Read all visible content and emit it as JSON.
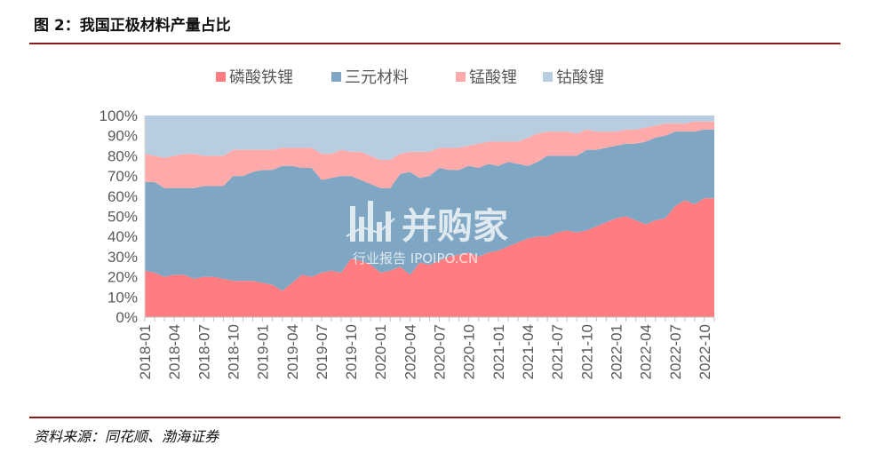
{
  "figure": {
    "title": "图 2：我国正极材料产量占比",
    "source": "资料来源：同花顺、渤海证券"
  },
  "watermark": {
    "brand": "并购家",
    "sub": "行业报告 IPOIPO.CN"
  },
  "chart_data": {
    "type": "area",
    "stacked": true,
    "title": "",
    "xlabel": "",
    "ylabel": "",
    "ylim": [
      0,
      100
    ],
    "y_ticks": [
      "0%",
      "10%",
      "20%",
      "30%",
      "40%",
      "50%",
      "60%",
      "70%",
      "80%",
      "90%",
      "100%"
    ],
    "legend_position": "top",
    "grid": false,
    "x": [
      "2018-01",
      "2018-02",
      "2018-03",
      "2018-04",
      "2018-05",
      "2018-06",
      "2018-07",
      "2018-08",
      "2018-09",
      "2018-10",
      "2018-11",
      "2018-12",
      "2019-01",
      "2019-02",
      "2019-03",
      "2019-04",
      "2019-05",
      "2019-06",
      "2019-07",
      "2019-08",
      "2019-09",
      "2019-10",
      "2019-11",
      "2019-12",
      "2020-01",
      "2020-02",
      "2020-03",
      "2020-04",
      "2020-05",
      "2020-06",
      "2020-07",
      "2020-08",
      "2020-09",
      "2020-10",
      "2020-11",
      "2020-12",
      "2021-01",
      "2021-02",
      "2021-03",
      "2021-04",
      "2021-05",
      "2021-06",
      "2021-07",
      "2021-08",
      "2021-09",
      "2021-10",
      "2021-11",
      "2021-12",
      "2022-01",
      "2022-02",
      "2022-03",
      "2022-04",
      "2022-05",
      "2022-06",
      "2022-07",
      "2022-08",
      "2022-09",
      "2022-10",
      "2022-11"
    ],
    "x_tick_labels": [
      "2018-01",
      "2018-04",
      "2018-07",
      "2018-10",
      "2019-01",
      "2019-04",
      "2019-07",
      "2019-10",
      "2020-01",
      "2020-04",
      "2020-07",
      "2020-10",
      "2021-01",
      "2021-04",
      "2021-07",
      "2021-10",
      "2022-01",
      "2022-04",
      "2022-07",
      "2022-10"
    ],
    "series": [
      {
        "name": "磷酸铁锂",
        "color": "#ff7c80",
        "values": [
          23,
          22,
          20,
          21,
          21,
          19,
          20,
          20,
          19,
          18,
          18,
          18,
          17,
          16,
          13,
          17,
          21,
          20,
          22,
          23,
          22,
          29,
          28,
          26,
          22,
          23,
          25,
          21,
          27,
          26,
          28,
          30,
          31,
          32,
          30,
          32,
          33,
          35,
          37,
          39,
          40,
          40,
          42,
          43,
          42,
          43,
          45,
          47,
          49,
          50,
          48,
          46,
          48,
          49,
          55,
          58,
          56,
          59,
          59
        ]
      },
      {
        "name": "三元材料",
        "color": "#7fa7c4",
        "values": [
          44,
          45,
          44,
          43,
          43,
          45,
          45,
          45,
          46,
          52,
          52,
          54,
          56,
          57,
          62,
          58,
          53,
          54,
          46,
          46,
          48,
          41,
          40,
          40,
          42,
          41,
          46,
          51,
          42,
          44,
          46,
          43,
          42,
          43,
          44,
          44,
          42,
          42,
          39,
          36,
          37,
          40,
          38,
          37,
          38,
          40,
          38,
          37,
          36,
          36,
          38,
          41,
          41,
          41,
          37,
          34,
          36,
          34,
          34
        ]
      },
      {
        "name": "锰酸锂",
        "color": "#ffaaaa",
        "values": [
          14,
          13,
          15,
          16,
          17,
          17,
          15,
          15,
          15,
          13,
          13,
          11,
          10,
          10,
          9,
          9,
          10,
          10,
          13,
          12,
          13,
          12,
          14,
          14,
          14,
          14,
          10,
          10,
          13,
          12,
          10,
          11,
          11,
          10,
          12,
          11,
          12,
          10,
          11,
          14,
          14,
          12,
          12,
          12,
          11,
          10,
          9,
          8,
          7,
          7,
          7,
          7,
          6,
          6,
          4,
          4,
          5,
          4,
          4
        ]
      },
      {
        "name": "钴酸锂",
        "color": "#b8cde0",
        "values": [
          19,
          20,
          21,
          20,
          19,
          19,
          20,
          20,
          20,
          17,
          17,
          17,
          17,
          17,
          16,
          16,
          16,
          16,
          19,
          19,
          17,
          18,
          18,
          20,
          22,
          22,
          19,
          18,
          18,
          18,
          16,
          16,
          16,
          15,
          14,
          13,
          13,
          13,
          13,
          11,
          9,
          8,
          8,
          8,
          9,
          7,
          8,
          8,
          8,
          7,
          7,
          6,
          5,
          4,
          4,
          4,
          3,
          3,
          3
        ]
      }
    ]
  }
}
